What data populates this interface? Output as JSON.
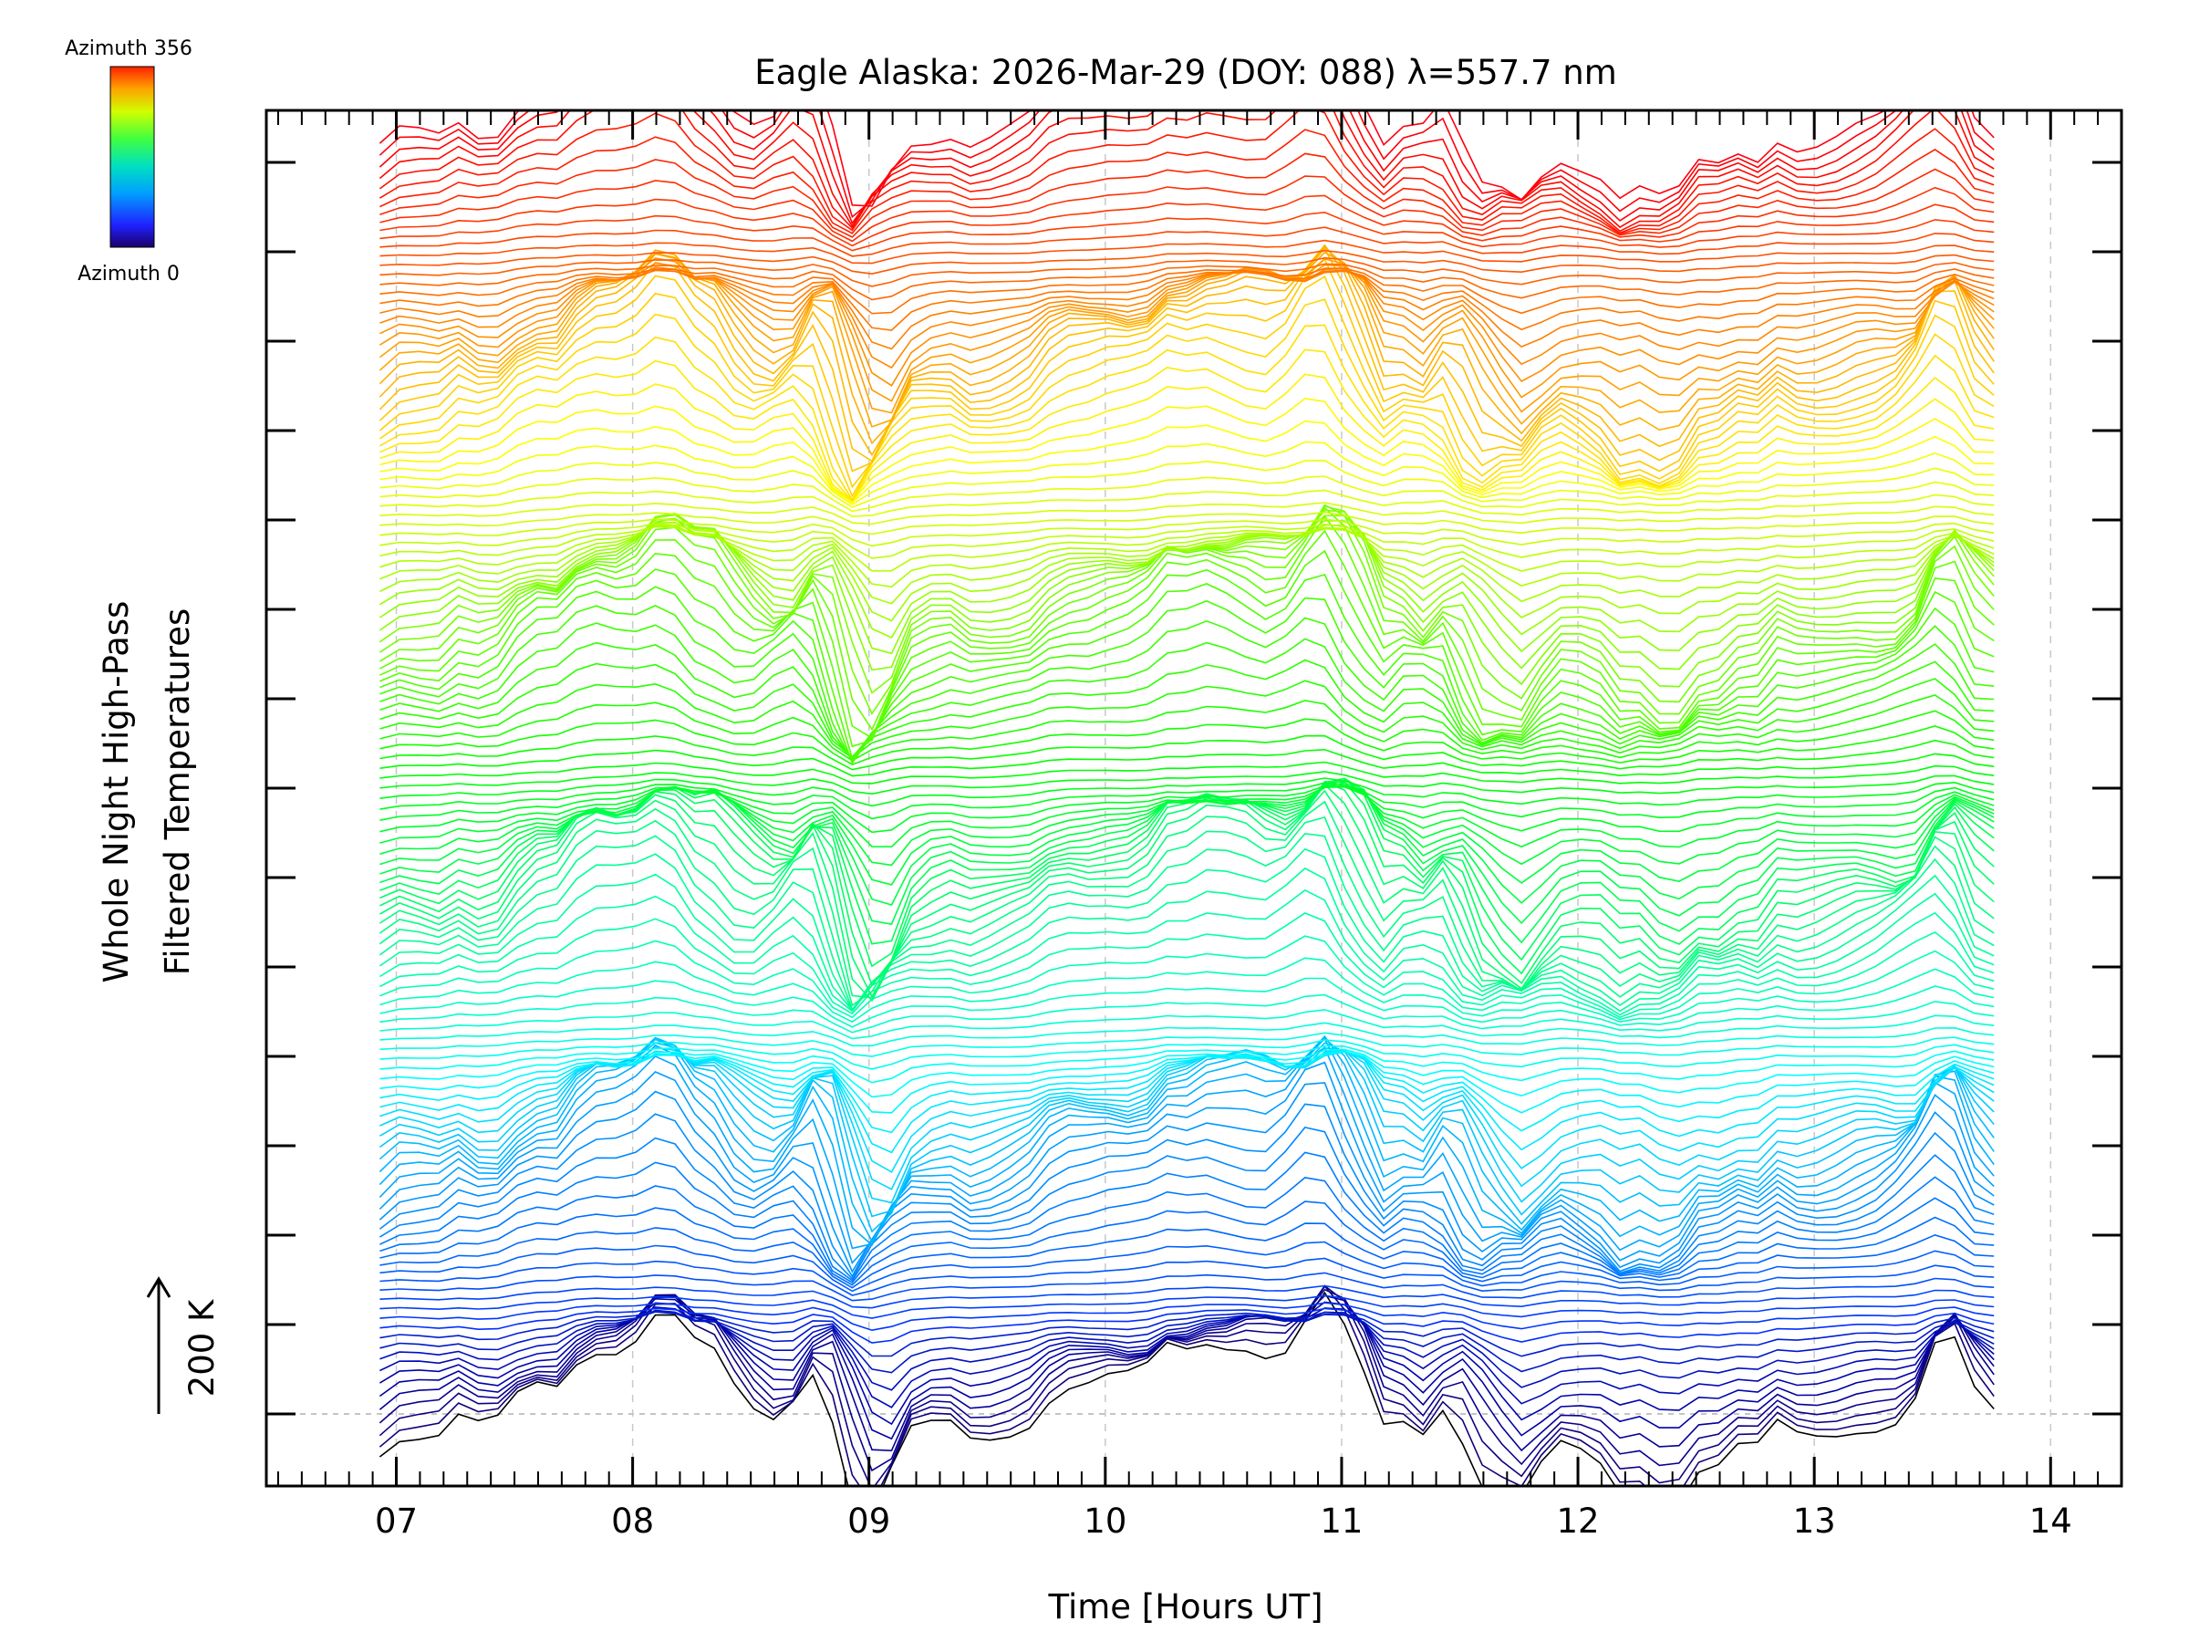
{
  "chart_data": {
    "type": "line",
    "title": "Eagle Alaska: 2026-Mar-29 (DOY: 088) λ=557.7 nm",
    "xlabel": "Time [Hours UT]",
    "ylabel_line1": "Whole Night High-Pass",
    "ylabel_line2": "Filtered Temperatures",
    "xlim": [
      6.45,
      14.3
    ],
    "data_range_hours": [
      6.93,
      13.82
    ],
    "x_ticks": [
      {
        "value": 7,
        "label": "07"
      },
      {
        "value": 8,
        "label": "08"
      },
      {
        "value": 9,
        "label": "09"
      },
      {
        "value": 10,
        "label": "10"
      },
      {
        "value": 11,
        "label": "11"
      },
      {
        "value": 12,
        "label": "12"
      },
      {
        "value": 13,
        "label": "13"
      },
      {
        "value": 14,
        "label": "14"
      }
    ],
    "scale_bar_label": "200 K",
    "colorbar": {
      "top_label": "Azimuth 356",
      "bottom_label": "Azimuth 0",
      "min": 0,
      "max": 356,
      "colormap": "rainbow"
    },
    "series_count": 135,
    "azimuth_step_deg": 2.7,
    "groups": 5,
    "gridlines": "dashed vertical at each hour"
  }
}
